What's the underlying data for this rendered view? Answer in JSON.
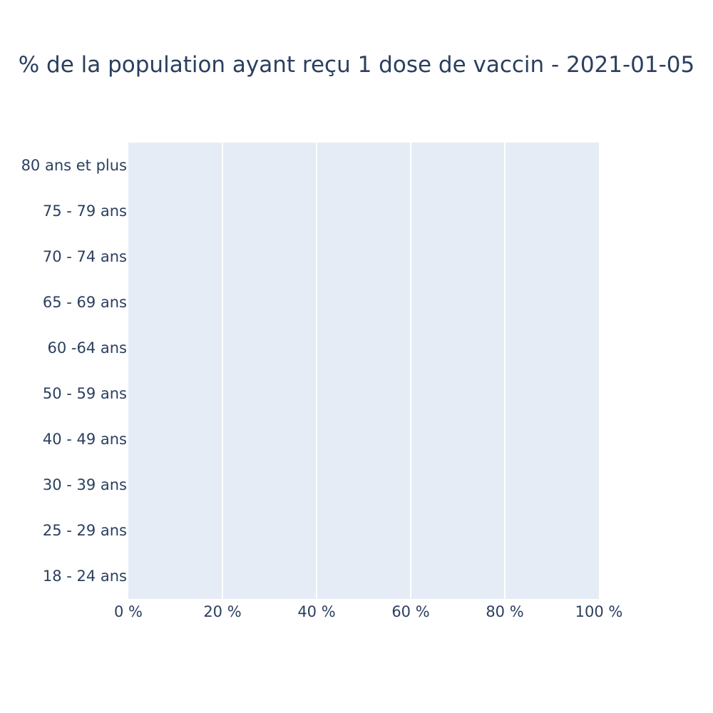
{
  "chart_data": {
    "type": "bar",
    "orientation": "horizontal",
    "title": "% de la population ayant reçu 1 dose de vaccin - 2021-01-05",
    "xlabel": "",
    "ylabel": "",
    "categories": [
      "80 ans et plus",
      "75 - 79 ans",
      "70 - 74 ans",
      "65 - 69 ans",
      "60 -64 ans",
      "50 - 59 ans",
      "40 - 49 ans",
      "30 - 39 ans",
      "25 - 29 ans",
      "18 - 24 ans"
    ],
    "values": [
      0,
      0,
      0,
      0,
      0,
      0,
      0,
      0,
      0,
      0
    ],
    "xlim": [
      0,
      100
    ],
    "x_ticks": [
      0,
      20,
      40,
      60,
      80,
      100
    ],
    "x_tick_labels": [
      "0 %",
      "20 %",
      "40 %",
      "60 %",
      "80 %",
      "100 %"
    ],
    "grid": true,
    "colors": {
      "plot_background": "#e5ecf6",
      "gridline": "#ffffff",
      "text": "#2a3f5f",
      "bar": "#636efa"
    }
  }
}
